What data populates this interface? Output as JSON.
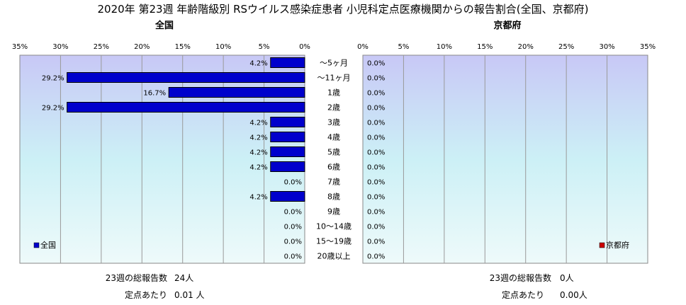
{
  "title": "2020年 第23週 年齢階級別 RSウイルス感染症患者 小児科定点医療機関からの報告割合(全国、京都府)",
  "chart_data": {
    "type": "bar",
    "orientation": "horizontal",
    "categories": [
      "～5ヶ月",
      "～11ヶ月",
      "1歳",
      "2歳",
      "3歳",
      "4歳",
      "5歳",
      "6歳",
      "7歳",
      "8歳",
      "9歳",
      "10～14歳",
      "15～19歳",
      "20歳以上"
    ],
    "xlim": [
      0,
      35
    ],
    "x_ticks": [
      "0%",
      "5%",
      "10%",
      "15%",
      "20%",
      "25%",
      "30%",
      "35%"
    ],
    "grid": true,
    "panels": [
      {
        "subtitle": "全国",
        "legend": "全国",
        "legend_position": "bottom-left",
        "direction": "right-to-left",
        "color": "#0000cc",
        "values": [
          4.2,
          29.2,
          16.7,
          29.2,
          4.2,
          4.2,
          4.2,
          4.2,
          0.0,
          4.2,
          0.0,
          0.0,
          0.0,
          0.0
        ],
        "labels": [
          "4.2%",
          "29.2%",
          "16.7%",
          "29.2%",
          "4.2%",
          "4.2%",
          "4.2%",
          "4.2%",
          "0.0%",
          "4.2%",
          "0.0%",
          "0.0%",
          "0.0%",
          "0.0%"
        ],
        "total_label": "23週の総報告数",
        "total_value": "24人",
        "per_label": "定点あたり",
        "per_value": "0.01 人"
      },
      {
        "subtitle": "京都府",
        "legend": "京都府",
        "legend_position": "bottom-right",
        "direction": "left-to-right",
        "color": "#cc0000",
        "values": [
          0.0,
          0.0,
          0.0,
          0.0,
          0.0,
          0.0,
          0.0,
          0.0,
          0.0,
          0.0,
          0.0,
          0.0,
          0.0,
          0.0
        ],
        "labels": [
          "0.0%",
          "0.0%",
          "0.0%",
          "0.0%",
          "0.0%",
          "0.0%",
          "0.0%",
          "0.0%",
          "0.0%",
          "0.0%",
          "0.0%",
          "0.0%",
          "0.0%",
          "0.0%"
        ],
        "total_label": "23週の総報告数",
        "total_value": "0人",
        "per_label": "定点あたり",
        "per_value": "0.00人"
      }
    ]
  }
}
